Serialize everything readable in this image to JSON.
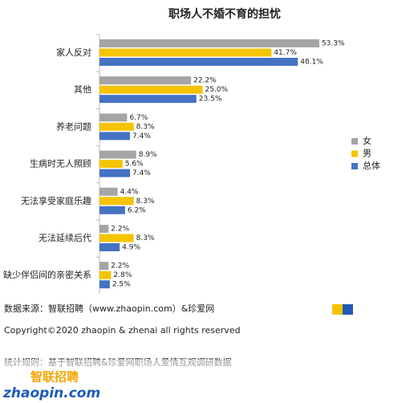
{
  "chart_data": {
    "type": "hbar",
    "title": "职场人不婚不育的担忧",
    "categories": [
      "家人反对",
      "其他",
      "养老问题",
      "生病时无人照顾",
      "无法享受家庭乐趣",
      "无法延续后代",
      "缺少伴侣间的亲密关系"
    ],
    "series": [
      {
        "name": "女",
        "color": "#a5a5a5",
        "values": [
          53.3,
          22.2,
          6.7,
          8.9,
          4.4,
          2.2,
          2.2
        ],
        "value_labels": [
          "53.3%",
          "22.2%",
          "6.7%",
          "8.9%",
          "4.4%",
          "2.2%",
          "2.2%"
        ]
      },
      {
        "name": "男",
        "color": "#f5c400",
        "values": [
          41.7,
          25.0,
          8.3,
          5.6,
          8.3,
          8.3,
          2.8
        ],
        "value_labels": [
          "41.7%",
          "25.0%",
          "8.3%",
          "5.6%",
          "8.3%",
          "8.3%",
          "2.8%"
        ]
      },
      {
        "name": "总体",
        "color": "#4472c4",
        "values": [
          48.1,
          23.5,
          7.4,
          7.4,
          6.2,
          4.9,
          2.5
        ],
        "value_labels": [
          "48.1%",
          "23.5%",
          "7.4%",
          "7.4%",
          "6.2%",
          "4.9%",
          "2.5%"
        ]
      }
    ],
    "legend": "right"
  },
  "notes": [
    "数据来源：智联招聘（www.zhaopin.com）&珍爱网",
    "Copyright©2020 zhaopin & zhenai  all rights reserved",
    "统计规则：基于智联招聘&珍爱网职场人爱情互观调研数据"
  ],
  "logo": {
    "name": "智联招聘",
    "site": "zhaopin.com"
  }
}
